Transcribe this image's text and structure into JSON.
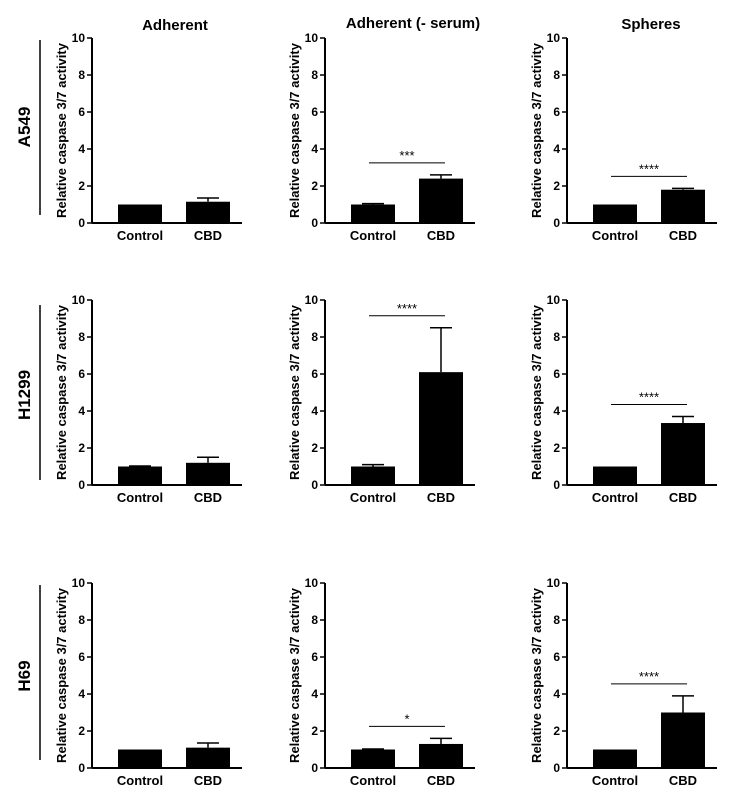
{
  "figure": {
    "column_titles": [
      "Adherent",
      "Adherent (- serum)",
      "Spheres"
    ],
    "row_labels": [
      "A549",
      "H1299",
      "H69"
    ]
  },
  "chart_data": [
    {
      "type": "bar",
      "row": "A549",
      "column": "Adherent",
      "ylabel": "Relative caspase 3/7 activity",
      "categories": [
        "Control",
        "CBD"
      ],
      "values": [
        1.0,
        1.15
      ],
      "errors": [
        0.0,
        0.2
      ],
      "ylim": [
        0,
        10
      ],
      "yticks": [
        0,
        2,
        4,
        6,
        8,
        10
      ],
      "significance": null
    },
    {
      "type": "bar",
      "row": "A549",
      "column": "Adherent (- serum)",
      "ylabel": "Relative caspase 3/7 activity",
      "categories": [
        "Control",
        "CBD"
      ],
      "values": [
        1.0,
        2.4
      ],
      "errors": [
        0.05,
        0.2
      ],
      "ylim": [
        0,
        10
      ],
      "yticks": [
        0,
        2,
        4,
        6,
        8,
        10
      ],
      "significance": "***"
    },
    {
      "type": "bar",
      "row": "A549",
      "column": "Spheres",
      "ylabel": "Relative caspase 3/7 activity",
      "categories": [
        "Control",
        "CBD"
      ],
      "values": [
        1.0,
        1.8
      ],
      "errors": [
        0.0,
        0.07
      ],
      "ylim": [
        0,
        10
      ],
      "yticks": [
        0,
        2,
        4,
        6,
        8,
        10
      ],
      "significance": "****"
    },
    {
      "type": "bar",
      "row": "H1299",
      "column": "Adherent",
      "ylabel": "Relative caspase 3/7 activity",
      "categories": [
        "Control",
        "CBD"
      ],
      "values": [
        1.0,
        1.2
      ],
      "errors": [
        0.03,
        0.3
      ],
      "ylim": [
        0,
        10
      ],
      "yticks": [
        0,
        2,
        4,
        6,
        8,
        10
      ],
      "significance": null
    },
    {
      "type": "bar",
      "row": "H1299",
      "column": "Adherent (- serum)",
      "ylabel": "Relative caspase 3/7 activity",
      "categories": [
        "Control",
        "CBD"
      ],
      "values": [
        1.0,
        6.1
      ],
      "errors": [
        0.1,
        2.4
      ],
      "ylim": [
        0,
        10
      ],
      "yticks": [
        0,
        2,
        4,
        6,
        8,
        10
      ],
      "significance": "****"
    },
    {
      "type": "bar",
      "row": "H1299",
      "column": "Spheres",
      "ylabel": "Relative caspase 3/7 activity",
      "categories": [
        "Control",
        "CBD"
      ],
      "values": [
        1.0,
        3.35
      ],
      "errors": [
        0.0,
        0.35
      ],
      "ylim": [
        0,
        10
      ],
      "yticks": [
        0,
        2,
        4,
        6,
        8,
        10
      ],
      "significance": "****"
    },
    {
      "type": "bar",
      "row": "H69",
      "column": "Adherent",
      "ylabel": "Relative caspase 3/7 activity",
      "categories": [
        "Control",
        "CBD"
      ],
      "values": [
        1.0,
        1.1
      ],
      "errors": [
        0.0,
        0.25
      ],
      "ylim": [
        0,
        10
      ],
      "yticks": [
        0,
        2,
        4,
        6,
        8,
        10
      ],
      "significance": null
    },
    {
      "type": "bar",
      "row": "H69",
      "column": "Adherent (- serum)",
      "ylabel": "Relative caspase 3/7 activity",
      "categories": [
        "Control",
        "CBD"
      ],
      "values": [
        1.0,
        1.3
      ],
      "errors": [
        0.03,
        0.3
      ],
      "ylim": [
        0,
        10
      ],
      "yticks": [
        0,
        2,
        4,
        6,
        8,
        10
      ],
      "significance": "*"
    },
    {
      "type": "bar",
      "row": "H69",
      "column": "Spheres",
      "ylabel": "Relative caspase 3/7 activity",
      "categories": [
        "Control",
        "CBD"
      ],
      "values": [
        1.0,
        3.0
      ],
      "errors": [
        0.0,
        0.9
      ],
      "ylim": [
        0,
        10
      ],
      "yticks": [
        0,
        2,
        4,
        6,
        8,
        10
      ],
      "significance": "****"
    }
  ]
}
